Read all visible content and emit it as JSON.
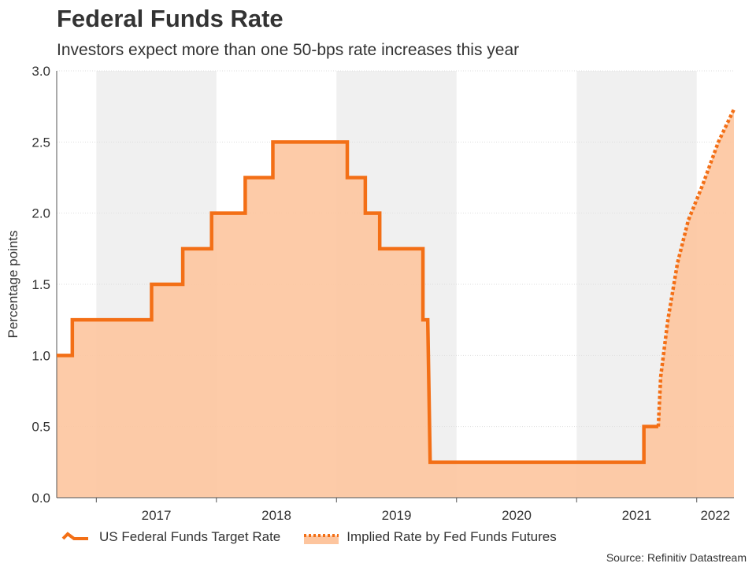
{
  "title": "Federal Funds Rate",
  "subtitle": "Investors expect more than one 50-bps rate increases this year",
  "source": "Source: Refinitiv Datastream",
  "colors": {
    "line": "#f36f16",
    "area": "#fdc59e",
    "shade": "#f0f0f0",
    "grid": "#dddddd",
    "axis": "#555555"
  },
  "chart_data": {
    "type": "line",
    "ylabel": "Percentage points",
    "xlabel": "",
    "ylim": [
      0,
      3.0
    ],
    "yticks": [
      "0.0",
      "0.5",
      "1.0",
      "1.5",
      "2.0",
      "2.5",
      "3.0"
    ],
    "xlim": [
      2016.67,
      2022.31
    ],
    "year_labels": [
      "2017",
      "2018",
      "2019",
      "2020",
      "2021",
      "2022"
    ],
    "shaded_years": [
      "2017",
      "2019",
      "2021"
    ],
    "grid": "horizontal dotted",
    "series": [
      {
        "name": "US Federal Funds Target Rate",
        "style": "solid",
        "points": [
          [
            2016.67,
            1.0
          ],
          [
            2016.8,
            1.0
          ],
          [
            2016.8,
            1.25
          ],
          [
            2017.46,
            1.25
          ],
          [
            2017.46,
            1.5
          ],
          [
            2017.72,
            1.5
          ],
          [
            2017.72,
            1.75
          ],
          [
            2017.96,
            1.75
          ],
          [
            2017.96,
            2.0
          ],
          [
            2018.24,
            2.0
          ],
          [
            2018.24,
            2.25
          ],
          [
            2018.47,
            2.25
          ],
          [
            2018.47,
            2.5
          ],
          [
            2019.09,
            2.5
          ],
          [
            2019.09,
            2.25
          ],
          [
            2019.24,
            2.25
          ],
          [
            2019.24,
            2.0
          ],
          [
            2019.36,
            2.0
          ],
          [
            2019.36,
            1.75
          ],
          [
            2019.72,
            1.75
          ],
          [
            2019.72,
            1.25
          ],
          [
            2019.76,
            1.25
          ],
          [
            2019.78,
            0.25
          ],
          [
            2021.56,
            0.25
          ],
          [
            2021.56,
            0.5
          ],
          [
            2021.68,
            0.5
          ]
        ]
      },
      {
        "name": "Implied Rate by Fed Funds Futures",
        "style": "dotted",
        "points": [
          [
            2021.68,
            0.5
          ],
          [
            2021.7,
            0.85
          ],
          [
            2021.76,
            1.25
          ],
          [
            2021.84,
            1.65
          ],
          [
            2021.93,
            1.95
          ],
          [
            2022.05,
            2.2
          ],
          [
            2022.18,
            2.5
          ],
          [
            2022.31,
            2.73
          ]
        ]
      }
    ]
  }
}
